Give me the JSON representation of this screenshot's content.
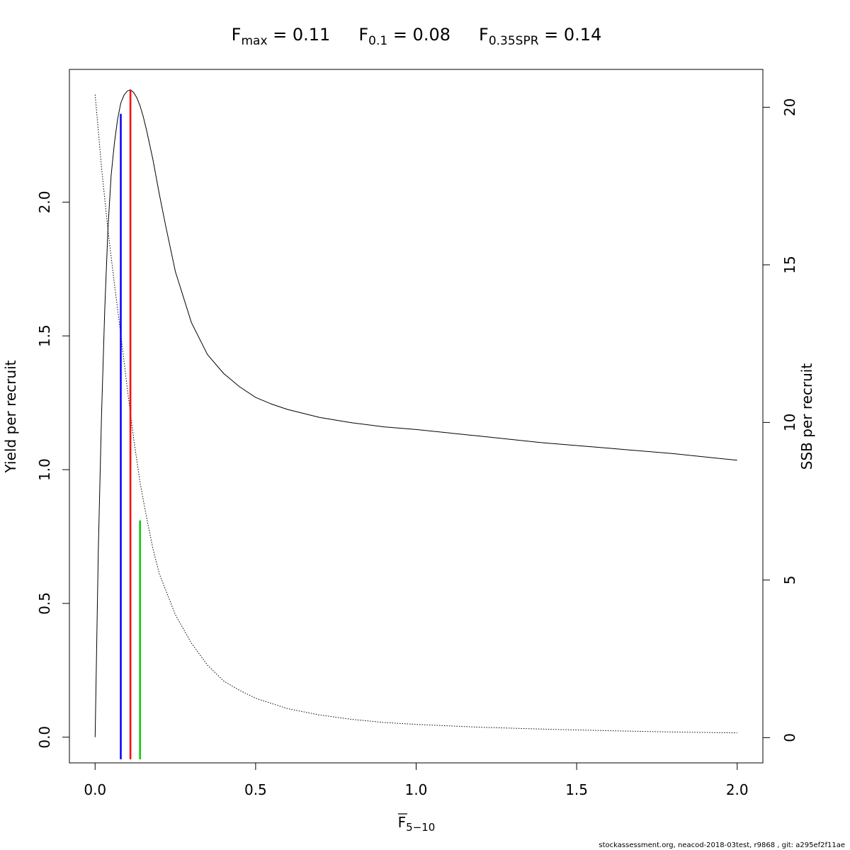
{
  "title": {
    "fmax_main": "F",
    "fmax_sub": "max",
    "fmax_value": " = 0.11",
    "f01_main": "F",
    "f01_sub": "0.1",
    "f01_value": " = 0.08",
    "fspr_main": "F",
    "fspr_sub": "0.35SPR",
    "fspr_value": " = 0.14"
  },
  "footer": "stockassessment.org, neacod-2018-03test, r9868 , git: a295ef2f11ae",
  "chart_data": {
    "type": "line",
    "xlabel": {
      "main": "F",
      "sub": "5−10",
      "overline": true
    },
    "ylabel_left": "Yield per recruit",
    "ylabel_right": "SSB per recruit",
    "xlim": [
      -0.08,
      2.08
    ],
    "ylim_left": [
      -0.096,
      2.496
    ],
    "ylim_right": [
      -0.8,
      21.2
    ],
    "x_ticks": [
      0.0,
      0.5,
      1.0,
      1.5,
      2.0
    ],
    "x_tick_labels": [
      "0.0",
      "0.5",
      "1.0",
      "1.5",
      "2.0"
    ],
    "y_left_ticks": [
      0.0,
      0.5,
      1.0,
      1.5,
      2.0
    ],
    "y_left_tick_labels": [
      "0.0",
      "0.5",
      "1.0",
      "1.5",
      "2.0"
    ],
    "y_right_ticks": [
      0,
      5,
      10,
      15,
      20
    ],
    "y_right_tick_labels": [
      "0",
      "5",
      "10",
      "15",
      "20"
    ],
    "grid": false,
    "series": [
      {
        "axis": "left",
        "style": "solid",
        "color": "#000000",
        "x": [
          0,
          0.01,
          0.02,
          0.03,
          0.04,
          0.05,
          0.06,
          0.07,
          0.08,
          0.09,
          0.1,
          0.11,
          0.12,
          0.13,
          0.14,
          0.15,
          0.16,
          0.18,
          0.2,
          0.22,
          0.25,
          0.3,
          0.35,
          0.4,
          0.45,
          0.5,
          0.55,
          0.6,
          0.7,
          0.8,
          0.9,
          1.0,
          1.2,
          1.4,
          1.6,
          1.8,
          2.0
        ],
        "y": [
          0.0,
          0.7,
          1.2,
          1.6,
          1.9,
          2.1,
          2.22,
          2.31,
          2.37,
          2.4,
          2.415,
          2.42,
          2.41,
          2.39,
          2.36,
          2.32,
          2.27,
          2.16,
          2.03,
          1.91,
          1.74,
          1.55,
          1.43,
          1.36,
          1.31,
          1.27,
          1.245,
          1.225,
          1.195,
          1.175,
          1.16,
          1.15,
          1.125,
          1.1,
          1.08,
          1.06,
          1.035
        ]
      },
      {
        "axis": "right",
        "style": "dotted",
        "color": "#000000",
        "x": [
          0,
          0.02,
          0.04,
          0.06,
          0.08,
          0.1,
          0.12,
          0.14,
          0.16,
          0.18,
          0.2,
          0.25,
          0.3,
          0.35,
          0.4,
          0.45,
          0.5,
          0.6,
          0.7,
          0.8,
          0.9,
          1.0,
          1.2,
          1.4,
          1.6,
          1.8,
          2.0
        ],
        "y": [
          20.4,
          18.1,
          16.1,
          14.4,
          12.8,
          11.1,
          9.5,
          8.1,
          7.0,
          6.0,
          5.2,
          3.9,
          3.0,
          2.3,
          1.8,
          1.5,
          1.25,
          0.92,
          0.72,
          0.58,
          0.48,
          0.42,
          0.33,
          0.27,
          0.22,
          0.18,
          0.15
        ]
      }
    ],
    "reference_lines": [
      {
        "name": "F0.1",
        "x": 0.08,
        "y_top_left": 2.33,
        "color": "#0000ff"
      },
      {
        "name": "Fmax",
        "x": 0.11,
        "y_top_left": 2.42,
        "color": "#ff0000"
      },
      {
        "name": "F0.35SPR",
        "x": 0.14,
        "y_top_left": 0.81,
        "color": "#00cc00"
      }
    ]
  }
}
